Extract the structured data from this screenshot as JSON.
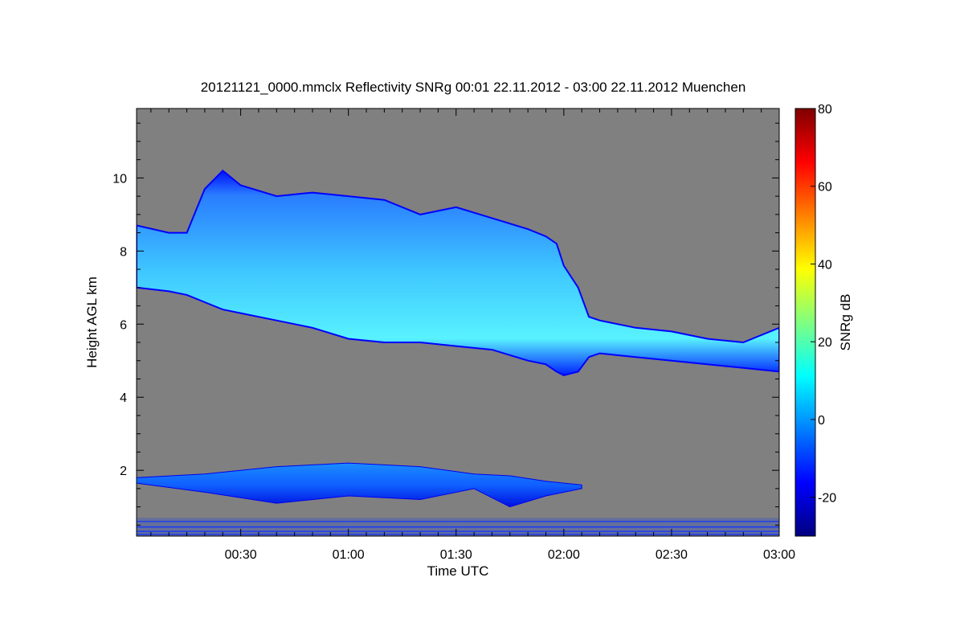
{
  "chart_data": {
    "type": "heatmap",
    "title": "20121121_0000.mmclx Reflectivity SNRg   00:01 22.11.2012 - 03:00 22.11.2012 Muenchen",
    "xlabel": "Time UTC",
    "ylabel": "Height AGL km",
    "xlim_minutes": [
      1,
      180
    ],
    "ylim_km": [
      0.2,
      11.9
    ],
    "x_ticks": [
      {
        "minutes": 30,
        "label": "00:30"
      },
      {
        "minutes": 60,
        "label": "01:00"
      },
      {
        "minutes": 90,
        "label": "01:30"
      },
      {
        "minutes": 120,
        "label": "02:00"
      },
      {
        "minutes": 150,
        "label": "02:30"
      },
      {
        "minutes": 180,
        "label": "03:00"
      }
    ],
    "y_ticks": [
      {
        "value": 2,
        "label": "2"
      },
      {
        "value": 4,
        "label": "4"
      },
      {
        "value": 6,
        "label": "6"
      },
      {
        "value": 8,
        "label": "8"
      },
      {
        "value": 10,
        "label": "10"
      }
    ],
    "colorbar": {
      "label": "SNRg dB",
      "range": [
        -30,
        80
      ],
      "ticks": [
        {
          "value": -20,
          "label": "-20"
        },
        {
          "value": 0,
          "label": "0"
        },
        {
          "value": 20,
          "label": "20"
        },
        {
          "value": 40,
          "label": "40"
        },
        {
          "value": 60,
          "label": "60"
        },
        {
          "value": 80,
          "label": "80"
        }
      ]
    },
    "background_color": "#808080",
    "colormap": [
      "#00007f",
      "#0000ff",
      "#0080ff",
      "#00ffff",
      "#80ff80",
      "#ffff00",
      "#ff8000",
      "#ff0000",
      "#7f0000"
    ],
    "grid": false,
    "upper_cloud_layer": {
      "name": "",
      "approx_snr_db": 0,
      "x_minutes": [
        1,
        10,
        15,
        20,
        25,
        30,
        40,
        50,
        60,
        70,
        80,
        90,
        100,
        110,
        115,
        118,
        120,
        124,
        127,
        130,
        140,
        150,
        160,
        170,
        180
      ],
      "top_km": [
        8.7,
        8.5,
        8.5,
        9.7,
        10.2,
        9.8,
        9.5,
        9.6,
        9.5,
        9.4,
        9.0,
        9.2,
        8.9,
        8.6,
        8.4,
        8.2,
        7.6,
        7.0,
        6.2,
        6.1,
        5.9,
        5.8,
        5.6,
        5.5,
        5.9
      ],
      "base_km": [
        7.0,
        6.9,
        6.8,
        6.6,
        6.4,
        6.3,
        6.1,
        5.9,
        5.6,
        5.5,
        5.5,
        5.4,
        5.3,
        5.0,
        4.9,
        4.7,
        4.6,
        4.7,
        5.1,
        5.2,
        5.1,
        5.0,
        4.9,
        4.8,
        4.7
      ]
    },
    "low_cloud_layer": {
      "name": "",
      "approx_snr_db": -5,
      "x_minutes": [
        1,
        20,
        40,
        60,
        80,
        95,
        105,
        115,
        125
      ],
      "top_km": [
        1.8,
        1.9,
        2.1,
        2.2,
        2.1,
        1.9,
        1.85,
        1.7,
        1.6
      ],
      "base_km": [
        1.65,
        1.4,
        1.1,
        1.3,
        1.2,
        1.5,
        1.0,
        1.3,
        1.5
      ]
    },
    "near_surface_clutter_km": [
      0.2,
      0.7
    ]
  }
}
